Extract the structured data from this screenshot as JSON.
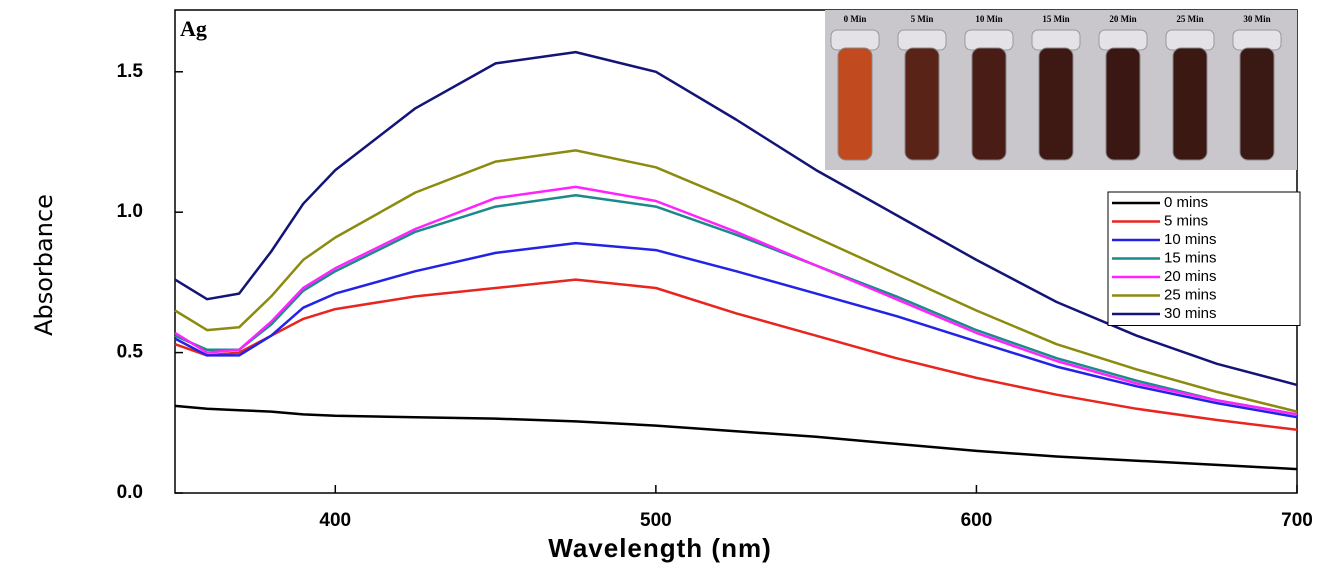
{
  "chart_data": {
    "type": "line",
    "x_label": "Wavelength (nm)",
    "y_label": "Absorbance",
    "annotation": "Ag",
    "inset_labels": [
      "0 Min",
      "5 Min",
      "10 Min",
      "15 Min",
      "20 Min",
      "25 Min",
      "30 Min"
    ],
    "x": [
      350,
      360,
      370,
      380,
      390,
      400,
      425,
      450,
      475,
      500,
      525,
      550,
      575,
      600,
      625,
      650,
      675,
      700
    ],
    "series": [
      {
        "name": "0 mins",
        "color": "#000000",
        "values": [
          0.31,
          0.3,
          0.295,
          0.29,
          0.28,
          0.275,
          0.27,
          0.265,
          0.255,
          0.24,
          0.22,
          0.2,
          0.175,
          0.15,
          0.13,
          0.115,
          0.1,
          0.085
        ]
      },
      {
        "name": "5 mins",
        "color": "#e8251f",
        "values": [
          0.53,
          0.49,
          0.5,
          0.56,
          0.62,
          0.655,
          0.7,
          0.73,
          0.76,
          0.73,
          0.64,
          0.56,
          0.48,
          0.41,
          0.35,
          0.3,
          0.26,
          0.225
        ]
      },
      {
        "name": "10 mins",
        "color": "#2323e6",
        "values": [
          0.55,
          0.49,
          0.49,
          0.56,
          0.66,
          0.71,
          0.79,
          0.855,
          0.89,
          0.865,
          0.79,
          0.71,
          0.63,
          0.54,
          0.45,
          0.38,
          0.32,
          0.27
        ]
      },
      {
        "name": "15 mins",
        "color": "#1a8a8a",
        "values": [
          0.56,
          0.51,
          0.51,
          0.6,
          0.72,
          0.79,
          0.93,
          1.02,
          1.06,
          1.02,
          0.92,
          0.81,
          0.7,
          0.58,
          0.48,
          0.4,
          0.33,
          0.28
        ]
      },
      {
        "name": "20 mins",
        "color": "#ff22ff",
        "values": [
          0.57,
          0.5,
          0.51,
          0.61,
          0.73,
          0.8,
          0.94,
          1.05,
          1.09,
          1.04,
          0.93,
          0.81,
          0.69,
          0.57,
          0.47,
          0.39,
          0.33,
          0.28
        ]
      },
      {
        "name": "25 mins",
        "color": "#8b8b10",
        "values": [
          0.65,
          0.58,
          0.59,
          0.7,
          0.83,
          0.91,
          1.07,
          1.18,
          1.22,
          1.16,
          1.04,
          0.91,
          0.78,
          0.65,
          0.53,
          0.44,
          0.36,
          0.29
        ]
      },
      {
        "name": "30 mins",
        "color": "#141478",
        "values": [
          0.76,
          0.69,
          0.71,
          0.86,
          1.03,
          1.15,
          1.37,
          1.53,
          1.57,
          1.5,
          1.33,
          1.15,
          0.99,
          0.83,
          0.68,
          0.56,
          0.46,
          0.385
        ]
      }
    ],
    "xlim": [
      350,
      700
    ],
    "ylim": [
      0,
      1.72
    ],
    "xticks": [
      400,
      500,
      600,
      700
    ],
    "yticks": [
      {
        "value": 0,
        "label": "0.0"
      },
      0.5,
      {
        "value": 1,
        "label": "1.0"
      },
      1.5
    ],
    "legend": "right"
  }
}
